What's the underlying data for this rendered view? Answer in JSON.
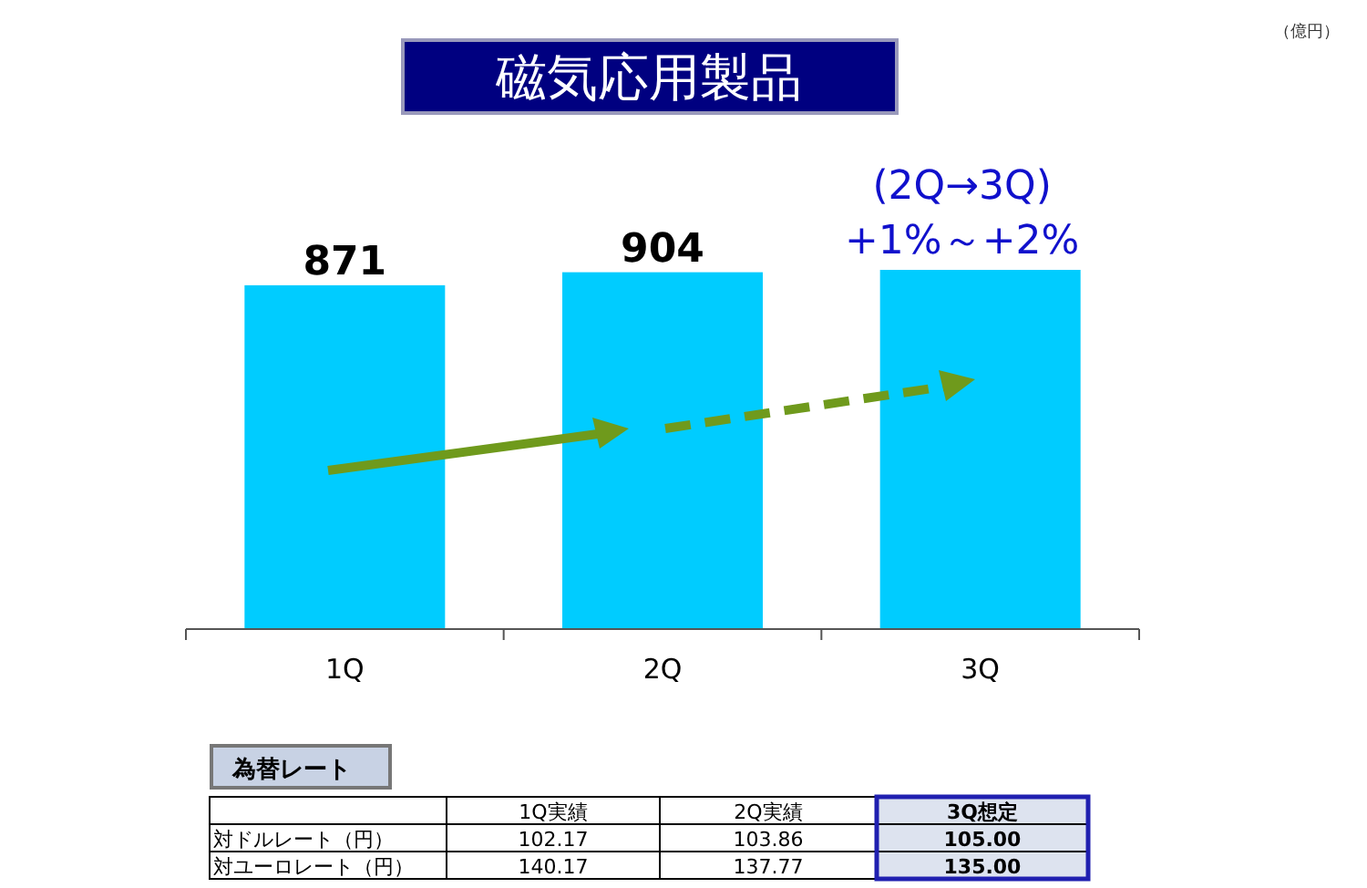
{
  "chart_data": {
    "type": "bar",
    "title": "磁気応用製品",
    "categories": [
      "1Q",
      "2Q",
      "3Q"
    ],
    "values": [
      871,
      904,
      910
    ],
    "value_labels": [
      "871",
      "904",
      null
    ],
    "color": "#00ccff",
    "annotations": [
      "（億円）",
      "(2Q→3Q)",
      "+1%～+2%",
      "為替レート",
      "1Q実績",
      "2Q実績",
      "3Q想定",
      "対ドルレート（円）",
      "102.17",
      "103.86",
      "105.00",
      "対ユーロレート（円）",
      "140.17",
      "137.77",
      "135.00"
    ]
  }
}
